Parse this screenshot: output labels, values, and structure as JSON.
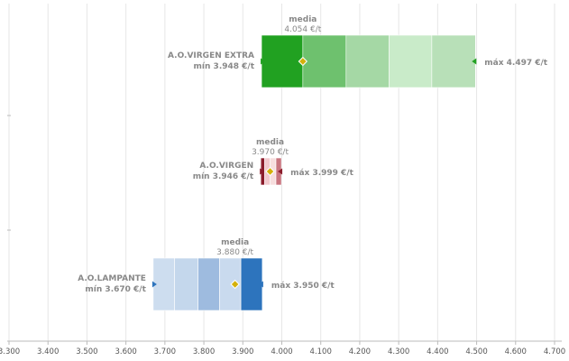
{
  "chart_data": {
    "type": "range-bar",
    "x_ticks": [
      "3.300",
      "3.400",
      "3.500",
      "3.600",
      "3.700",
      "3.800",
      "3.900",
      "4.000",
      "4.100",
      "4.200",
      "4.300",
      "4.400",
      "4.500",
      "4.600",
      "4.700"
    ],
    "xlim": [
      3300,
      4700
    ],
    "grid": true,
    "series": [
      {
        "name": "A.O.VIRGEN EXTRA",
        "min": 3948,
        "max": 4497,
        "media": 4054,
        "min_label": "mín 3.948 €/t",
        "max_label": "máx 4.497 €/t",
        "media_title": "media",
        "media_label": "4.054 €/t",
        "segment_bounds": [
          3948,
          4054,
          4165,
          4275,
          4385,
          4497
        ],
        "segment_colors": [
          "#21a121",
          "#6ec16e",
          "#a5d8a5",
          "#c9ebc9",
          "#b8e0b8"
        ],
        "edge_color": "#21a121"
      },
      {
        "name": "A.O.VIRGEN",
        "min": 3946,
        "max": 3999,
        "media": 3970,
        "min_label": "mín 3.946 €/t",
        "max_label": "máx 3.999 €/t",
        "media_title": "media",
        "media_label": "3.970 €/t",
        "segment_bounds": [
          3946,
          3956,
          3970,
          3985,
          3999
        ],
        "segment_colors": [
          "#8b1d2c",
          "#f2c9cd",
          "#f7dede",
          "#c9757f"
        ],
        "edge_color": "#8b1d2c"
      },
      {
        "name": "A.O.LAMPANTE",
        "min": 3670,
        "max": 3950,
        "media": 3880,
        "min_label": "mín 3.670 €/t",
        "max_label": "máx 3.950 €/t",
        "media_title": "media",
        "media_label": "3.880 €/t",
        "segment_bounds": [
          3670,
          3725,
          3785,
          3840,
          3895,
          3950
        ],
        "segment_colors": [
          "#cdddef",
          "#c4d7ec",
          "#9ebbdf",
          "#c9daee",
          "#2d74bd"
        ],
        "edge_color": "#2d74bd"
      }
    ]
  },
  "colors": {
    "media_marker": "#d4b10a",
    "grid": "#e6e6e6",
    "axis": "#bbbbbb"
  }
}
